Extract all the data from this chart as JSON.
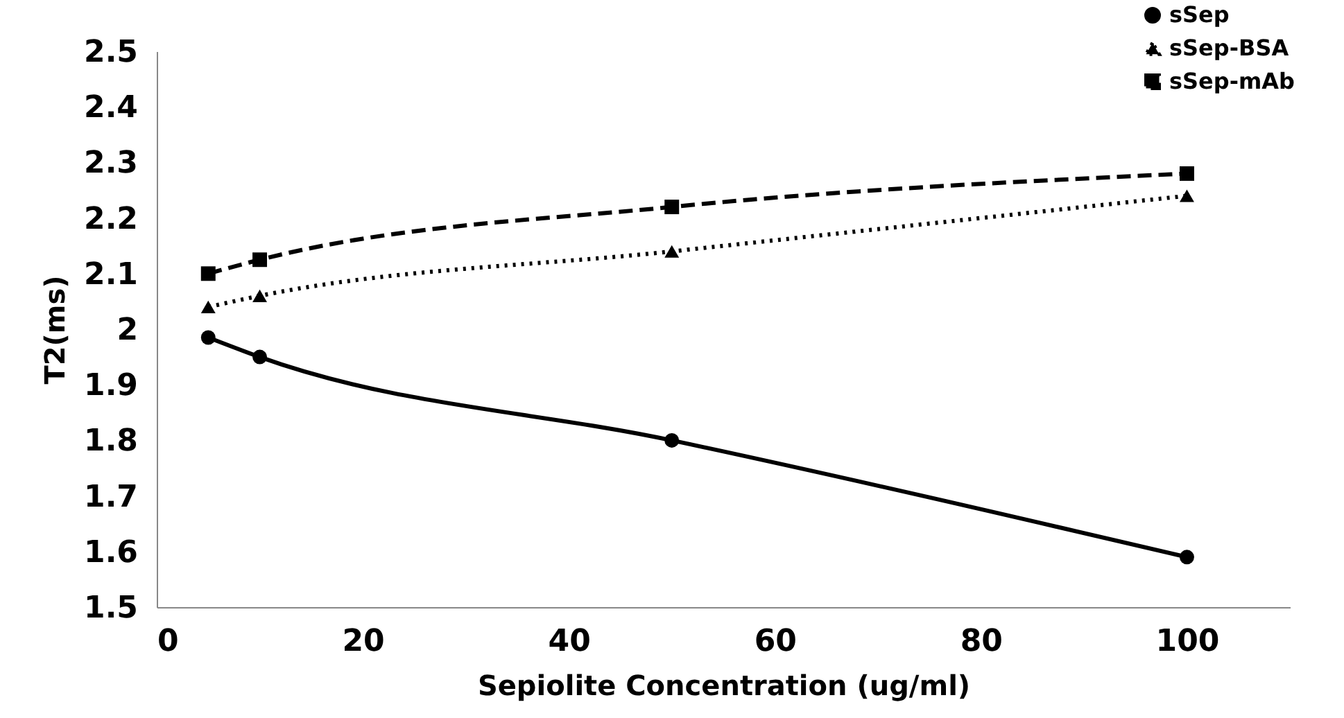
{
  "chart_data": {
    "type": "line",
    "xlabel": "Sepiolite Concentration (ug/ml)",
    "ylabel": "T2(ms)",
    "x": [
      5,
      10,
      50,
      100
    ],
    "series": [
      {
        "name": "sSep",
        "color": "#000000",
        "values": [
          1.985,
          1.95,
          1.8,
          1.59
        ],
        "marker": "circle",
        "line_style": "solid"
      },
      {
        "name": "sSep-BSA",
        "color": "#000000",
        "values": [
          2.04,
          2.06,
          2.14,
          2.24
        ],
        "marker": "triangle",
        "line_style": "dotted"
      },
      {
        "name": "sSep-mAb",
        "color": "#000000",
        "values": [
          2.1,
          2.125,
          2.22,
          2.28
        ],
        "marker": "square",
        "line_style": "dashed"
      }
    ],
    "xlim": [
      0,
      110
    ],
    "xticks": [
      0,
      20,
      40,
      60,
      80,
      100
    ],
    "ylim": [
      1.5,
      2.5
    ],
    "yticks": [
      1.5,
      1.6,
      1.7,
      1.8,
      1.9,
      2,
      2.1,
      2.2,
      2.3,
      2.4,
      2.5
    ],
    "grid": false,
    "legend": "top right"
  }
}
